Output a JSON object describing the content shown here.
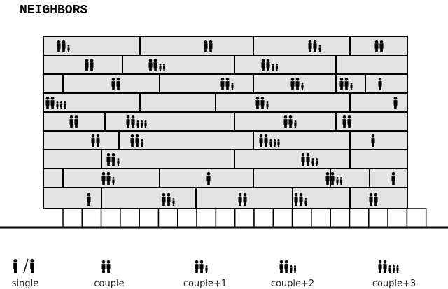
{
  "title": "NEIGHBORS",
  "legend": [
    "single",
    "couple",
    "couple+1",
    "couple+2",
    "couple+3"
  ]
}
